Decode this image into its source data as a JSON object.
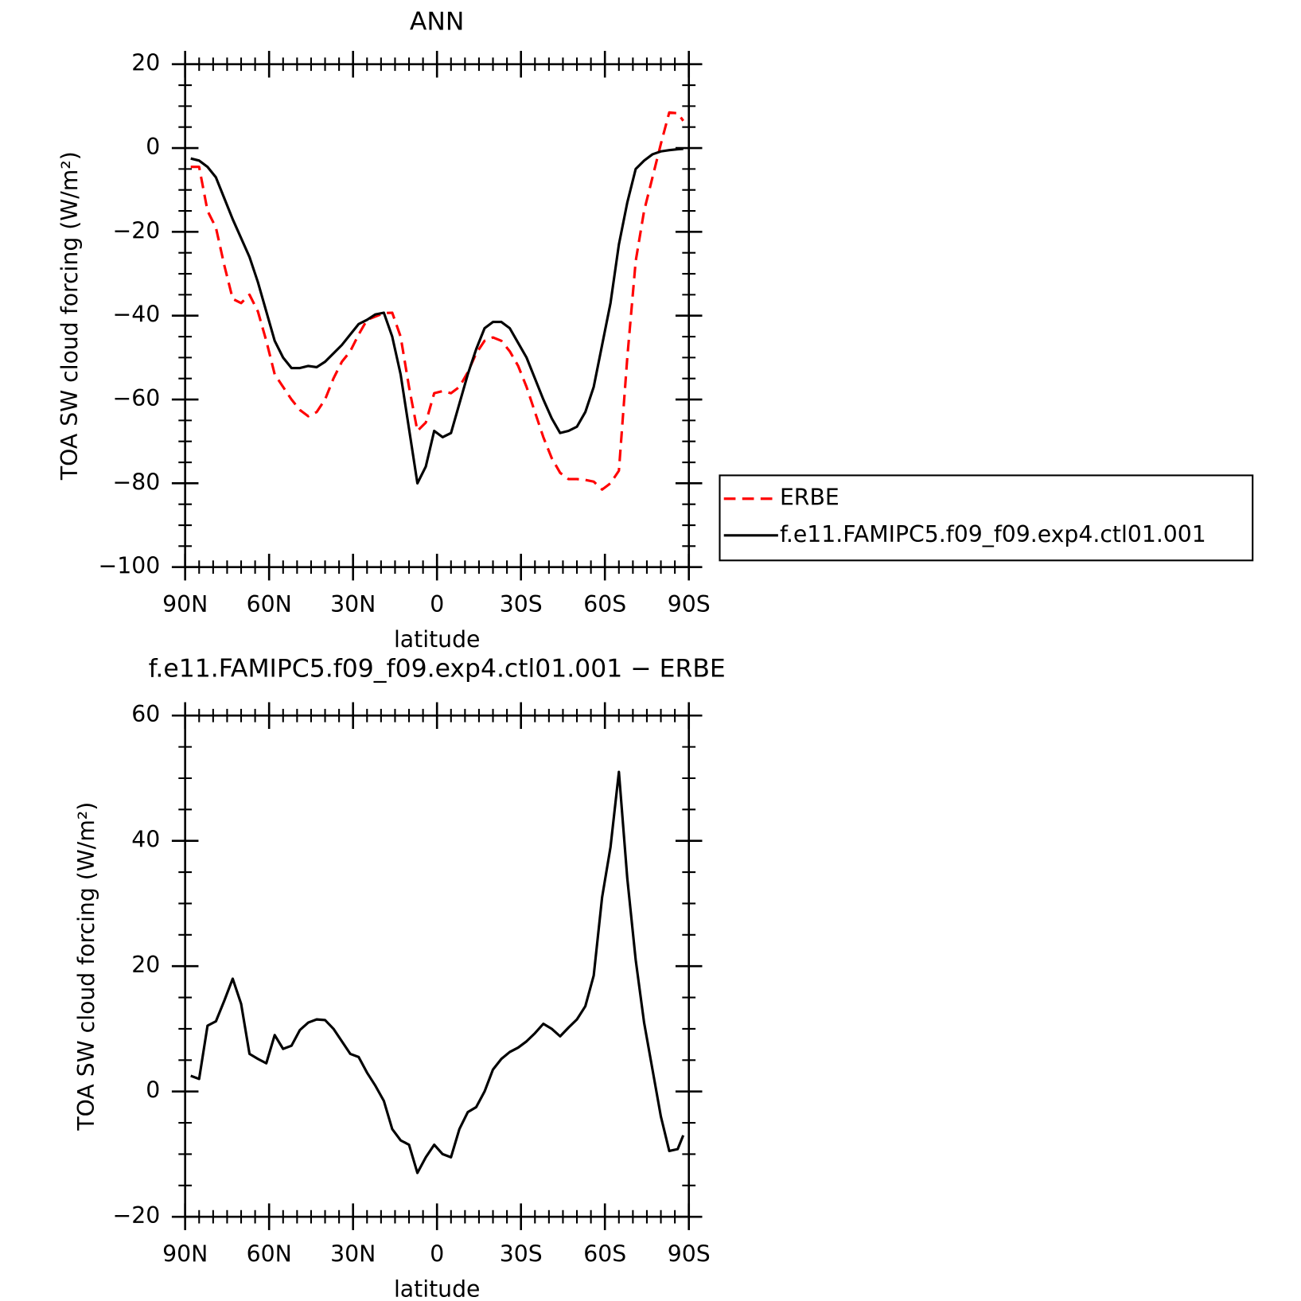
{
  "chart_data": [
    {
      "type": "line",
      "title": "ANN",
      "xlabel": "latitude",
      "ylabel": "TOA SW cloud forcing (W/m²)",
      "x": [
        88,
        85,
        82,
        79,
        76,
        73,
        70,
        67,
        64,
        61,
        58,
        55,
        52,
        49,
        46,
        43,
        40,
        37,
        34,
        31,
        28,
        25,
        22,
        19,
        16,
        13,
        10,
        7,
        4,
        1,
        -2,
        -5,
        -8,
        -11,
        -14,
        -17,
        -20,
        -23,
        -26,
        -29,
        -32,
        -35,
        -38,
        -41,
        -44,
        -47,
        -50,
        -53,
        -56,
        -59,
        -62,
        -65,
        -68,
        -71,
        -74,
        -77,
        -80,
        -83,
        -86,
        -88
      ],
      "series": [
        {
          "name": "ERBE",
          "color": "#ff0000",
          "dash": "dashed",
          "values": [
            -4.5,
            -4.5,
            -15,
            -19,
            -28,
            -36,
            -37,
            -35,
            -39,
            -46,
            -54,
            -57,
            -60,
            -62.5,
            -64,
            -63,
            -60,
            -55,
            -51,
            -48.5,
            -44.5,
            -41,
            -40.2,
            -39.4,
            -39.3,
            -45,
            -57,
            -67.5,
            -65.5,
            -58.5,
            -58,
            -58.5,
            -57,
            -53.5,
            -49,
            -46,
            -45.2,
            -46,
            -48.5,
            -52,
            -57,
            -63,
            -69,
            -74,
            -77.5,
            -79,
            -79,
            -79.2,
            -79.6,
            -81.5,
            -80,
            -77,
            -50,
            -27,
            -15,
            -7,
            1,
            8.5,
            8.3,
            6.5
          ]
        },
        {
          "name": "f.e11.FAMIPC5.f09_f09.exp4.ctl01.001",
          "color": "#000000",
          "dash": "solid",
          "values": [
            -2.5,
            -3,
            -4.5,
            -7,
            -12,
            -17,
            -21.5,
            -26,
            -32,
            -39,
            -46,
            -50,
            -52.5,
            -52.5,
            -52,
            -52.3,
            -51,
            -49,
            -47,
            -44.5,
            -42,
            -41,
            -39.7,
            -39.3,
            -45,
            -54,
            -67,
            -80,
            -76,
            -67.5,
            -69,
            -68,
            -61,
            -54,
            -48,
            -43,
            -41.5,
            -41.5,
            -43,
            -46.5,
            -50,
            -55,
            -60,
            -64.5,
            -68,
            -67.5,
            -66.5,
            -63,
            -57,
            -47,
            -37,
            -23,
            -13,
            -5,
            -3,
            -1.5,
            -0.8,
            -0.5,
            -0.3,
            -0.2
          ]
        }
      ],
      "xlim": [
        90,
        -90
      ],
      "xticks": [
        {
          "value": 90,
          "label": "90N"
        },
        {
          "value": 60,
          "label": "60N"
        },
        {
          "value": 30,
          "label": "30N"
        },
        0,
        {
          "value": -30,
          "label": "30S"
        },
        {
          "value": -60,
          "label": "60S"
        },
        {
          "value": -90,
          "label": "90S"
        }
      ],
      "ylim": [
        -100,
        20
      ],
      "yticks": [
        {
          "value": -100,
          "label": "−100"
        },
        {
          "value": -80,
          "label": "−80"
        },
        {
          "value": -60,
          "label": "−60"
        },
        {
          "value": -40,
          "label": "−40"
        },
        {
          "value": -20,
          "label": "−20"
        },
        0,
        20
      ],
      "legend": "right"
    },
    {
      "type": "line",
      "title": "f.e11.FAMIPC5.f09_f09.exp4.ctl01.001 − ERBE",
      "xlabel": "latitude",
      "ylabel": "TOA SW cloud forcing (W/m²)",
      "x": [
        88,
        85,
        82,
        79,
        76,
        73,
        70,
        67,
        64,
        61,
        58,
        55,
        52,
        49,
        46,
        43,
        40,
        37,
        34,
        31,
        28,
        25,
        22,
        19,
        16,
        13,
        10,
        7,
        4,
        1,
        -2,
        -5,
        -8,
        -11,
        -14,
        -17,
        -20,
        -23,
        -26,
        -29,
        -32,
        -35,
        -38,
        -41,
        -44,
        -47,
        -50,
        -53,
        -56,
        -59,
        -62,
        -65,
        -68,
        -71,
        -74,
        -77,
        -80,
        -83,
        -86,
        -88
      ],
      "series": [
        {
          "color": "#000000",
          "dash": "solid",
          "values": [
            2.5,
            2,
            10.5,
            11.2,
            14.5,
            18,
            14,
            6,
            5.2,
            4.5,
            9,
            6.8,
            7.3,
            9.8,
            11,
            11.5,
            11.4,
            10,
            8,
            6,
            5.5,
            3,
            0.9,
            -1.5,
            -6,
            -7.8,
            -8.5,
            -13,
            -10.5,
            -8.5,
            -10,
            -10.5,
            -6,
            -3.3,
            -2.5,
            0,
            3.5,
            5.2,
            6.3,
            7,
            8,
            9.3,
            10.8,
            10,
            8.8,
            10.2,
            11.5,
            13.6,
            18.5,
            31,
            39,
            51,
            34,
            21,
            11,
            3.5,
            -4,
            -9.5,
            -9.2,
            -7
          ]
        }
      ],
      "xlim": [
        90,
        -90
      ],
      "xticks": [
        {
          "value": 90,
          "label": "90N"
        },
        {
          "value": 60,
          "label": "60N"
        },
        {
          "value": 30,
          "label": "30N"
        },
        0,
        {
          "value": -30,
          "label": "30S"
        },
        {
          "value": -60,
          "label": "60S"
        },
        {
          "value": -90,
          "label": "90S"
        }
      ],
      "ylim": [
        -20,
        60
      ],
      "yticks": [
        {
          "value": -20,
          "label": "−20"
        },
        0,
        20,
        40,
        60
      ]
    }
  ]
}
